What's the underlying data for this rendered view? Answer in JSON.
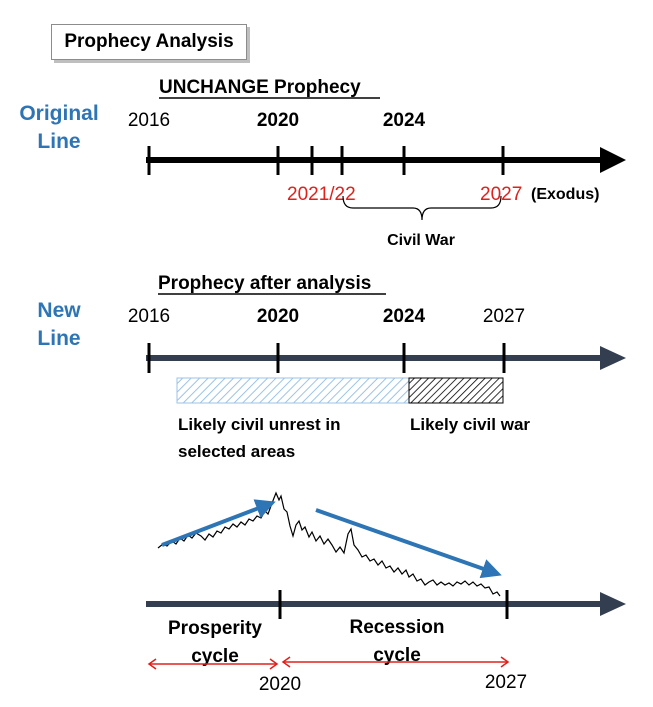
{
  "title": "Prophecy Analysis",
  "original": {
    "line_label": [
      "Original",
      "Line"
    ],
    "heading": "UNCHANGE Prophecy",
    "years": [
      "2016",
      "2020",
      "2024"
    ],
    "markers": {
      "a": "2021/22",
      "b": "2027",
      "exodus": "(Exodus)"
    },
    "brace_label": "Civil War"
  },
  "new_line": {
    "line_label": [
      "New",
      "Line"
    ],
    "heading": "Prophecy after analysis",
    "years": [
      "2016",
      "2020",
      "2024",
      "2027"
    ],
    "legend": {
      "unrest": [
        "Likely civil unrest in",
        "selected areas"
      ],
      "war": "Likely civil war"
    }
  },
  "cycle": {
    "prosperity": [
      "Prosperity",
      "cycle"
    ],
    "recession": [
      "Recession",
      "cycle"
    ],
    "years": [
      "2020",
      "2027"
    ]
  },
  "colors": {
    "label_blue": "#2e75b6",
    "axis_dark": "#333f50",
    "marker_red": "#e0201b",
    "trend_blue": "#2e75b6"
  }
}
